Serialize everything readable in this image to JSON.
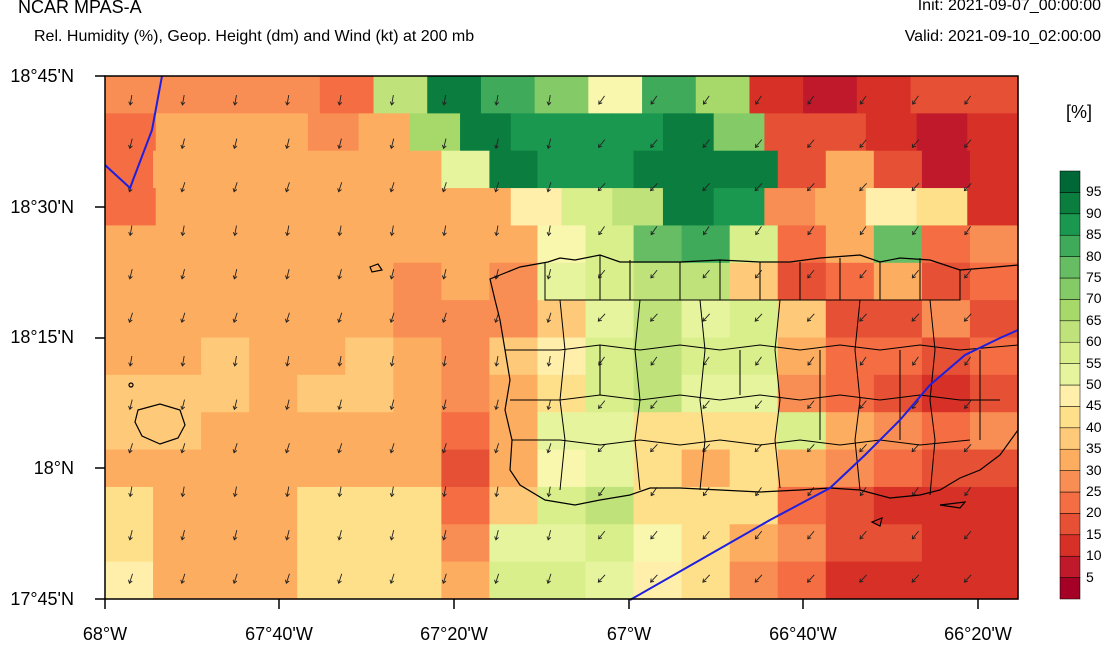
{
  "header": {
    "title": "NCAR MPAS-A",
    "subtitle": "Rel. Humidity (%), Geop. Height (dm) and Wind (kt) at 200 mb",
    "init": "Init: 2021-09-07_00:00:00",
    "valid": "Valid: 2021-09-10_02:00:00"
  },
  "map": {
    "region": "Puerto Rico",
    "lat_labels": [
      "18°45'N",
      "18°30'N",
      "18°15'N",
      "18°N",
      "17°45'N"
    ],
    "lon_labels": [
      "68°W",
      "67°40'W",
      "67°20'W",
      "67°W",
      "66°40'W",
      "66°20'W"
    ],
    "grid_rh": [
      [
        25,
        25,
        25,
        25,
        20,
        65,
        95,
        85,
        75,
        50,
        85,
        70,
        10,
        5,
        10,
        15,
        15
      ],
      [
        20,
        30,
        30,
        30,
        25,
        30,
        70,
        95,
        90,
        90,
        90,
        95,
        75,
        15,
        15,
        10,
        5,
        10
      ],
      [
        20,
        30,
        30,
        30,
        30,
        30,
        30,
        55,
        95,
        90,
        90,
        95,
        95,
        95,
        15,
        30,
        15,
        5,
        10
      ],
      [
        20,
        30,
        30,
        30,
        30,
        30,
        30,
        30,
        45,
        60,
        65,
        95,
        90,
        25,
        30,
        45,
        40,
        10
      ],
      [
        30,
        30,
        30,
        30,
        30,
        30,
        30,
        30,
        30,
        50,
        60,
        80,
        85,
        60,
        20,
        30,
        80,
        20,
        25
      ],
      [
        30,
        30,
        30,
        30,
        30,
        30,
        25,
        30,
        25,
        55,
        60,
        65,
        65,
        35,
        15,
        20,
        30,
        15,
        20
      ],
      [
        30,
        30,
        30,
        30,
        30,
        30,
        25,
        25,
        25,
        35,
        55,
        65,
        55,
        60,
        35,
        15,
        15,
        25,
        15
      ],
      [
        30,
        30,
        35,
        30,
        30,
        35,
        30,
        25,
        35,
        45,
        60,
        65,
        60,
        60,
        30,
        20,
        20,
        15,
        20
      ],
      [
        35,
        35,
        35,
        30,
        35,
        35,
        30,
        25,
        30,
        40,
        60,
        65,
        55,
        55,
        25,
        20,
        15,
        10,
        15
      ],
      [
        35,
        35,
        30,
        30,
        30,
        30,
        30,
        20,
        30,
        55,
        55,
        40,
        40,
        40,
        60,
        30,
        25,
        20,
        25
      ],
      [
        30,
        30,
        30,
        30,
        30,
        30,
        30,
        15,
        30,
        50,
        55,
        40,
        30,
        40,
        30,
        25,
        20,
        15,
        15
      ],
      [
        40,
        30,
        30,
        30,
        40,
        40,
        40,
        20,
        35,
        60,
        65,
        40,
        40,
        40,
        20,
        15,
        10,
        10,
        10
      ],
      [
        40,
        30,
        30,
        30,
        40,
        40,
        40,
        25,
        55,
        55,
        60,
        50,
        40,
        30,
        25,
        15,
        15,
        10,
        10
      ],
      [
        45,
        30,
        30,
        30,
        40,
        40,
        40,
        30,
        60,
        60,
        55,
        45,
        40,
        25,
        20,
        10,
        10,
        10,
        10
      ]
    ],
    "wind_arrows": "north-northeast barbs"
  },
  "colorbar": {
    "unit": "[%]",
    "levels": [
      "5",
      "10",
      "15",
      "20",
      "25",
      "30",
      "35",
      "40",
      "45",
      "50",
      "55",
      "60",
      "65",
      "70",
      "75",
      "80",
      "85",
      "90",
      "95"
    ],
    "colors": [
      "#a50026",
      "#c1192c",
      "#d73027",
      "#e65035",
      "#f46d43",
      "#f88e53",
      "#fdad60",
      "#fec978",
      "#fee08b",
      "#ffefab",
      "#f9f7ae",
      "#e6f49d",
      "#d9ef8b",
      "#bfe37a",
      "#a6d96a",
      "#84ca66",
      "#66bd63",
      "#3faa59",
      "#1a9850",
      "#0a7d3f",
      "#006837"
    ]
  }
}
